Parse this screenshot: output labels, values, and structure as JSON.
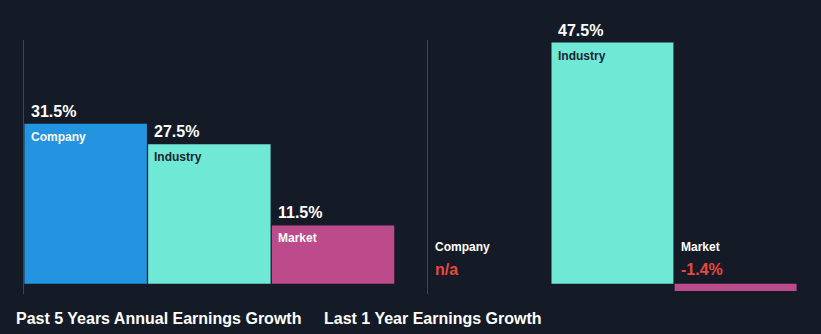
{
  "chart_data": [
    {
      "type": "bar",
      "title": "Past 5 Years Annual Earnings Growth",
      "categories": [
        "Company",
        "Industry",
        "Market"
      ],
      "values": [
        31.5,
        27.5,
        11.5
      ],
      "value_labels": [
        "31.5%",
        "27.5%",
        "11.5%"
      ],
      "colors": [
        "#2394e0",
        "#6fe8d6",
        "#bd4a8a"
      ],
      "ylim": [
        -2,
        48
      ],
      "data_labels": true,
      "tick_labels": false,
      "grid": false
    },
    {
      "type": "bar",
      "title": "Last 1 Year Earnings Growth",
      "categories": [
        "Company",
        "Industry",
        "Market"
      ],
      "values": [
        null,
        47.5,
        -1.4
      ],
      "value_labels": [
        "n/a",
        "47.5%",
        "-1.4%"
      ],
      "colors": [
        "#2394e0",
        "#6fe8d6",
        "#bd4a8a"
      ],
      "ylim": [
        -2,
        48
      ],
      "data_labels": true,
      "tick_labels": false,
      "grid": false
    }
  ]
}
